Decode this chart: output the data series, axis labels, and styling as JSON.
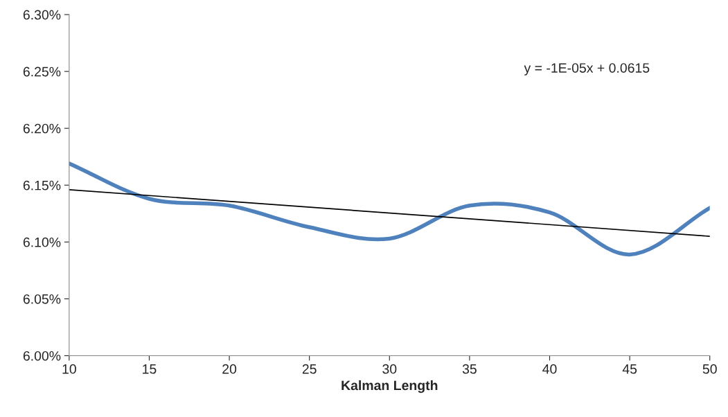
{
  "chart_data": {
    "type": "line",
    "xlabel": "Kalman Length",
    "x": [
      10,
      15,
      20,
      25,
      30,
      35,
      40,
      45,
      50
    ],
    "series": [
      {
        "color": "#4f81bd",
        "values": [
          6.169,
          6.138,
          6.132,
          6.113,
          6.103,
          6.132,
          6.126,
          6.089,
          6.13
        ]
      },
      {
        "type": "line",
        "color": "#000000",
        "x": [
          10,
          50
        ],
        "values": [
          6.146,
          6.105
        ]
      }
    ],
    "annotations": [
      "y = -1E-05x + 0.0615"
    ],
    "xlim": [
      10,
      50
    ],
    "xticks": [
      10,
      15,
      20,
      25,
      30,
      35,
      40,
      45,
      50
    ],
    "ylim": [
      6.0,
      6.3
    ],
    "yticks": [
      {
        "value": 6.0,
        "label": "6.00%"
      },
      {
        "value": 6.05,
        "label": "6.05%"
      },
      {
        "value": 6.1,
        "label": "6.10%"
      },
      {
        "value": 6.15,
        "label": "6.15%"
      },
      {
        "value": 6.2,
        "label": "6.20%"
      },
      {
        "value": 6.25,
        "label": "6.25%"
      },
      {
        "value": 6.3,
        "label": "6.30%"
      }
    ],
    "grid": false,
    "legend": false
  }
}
